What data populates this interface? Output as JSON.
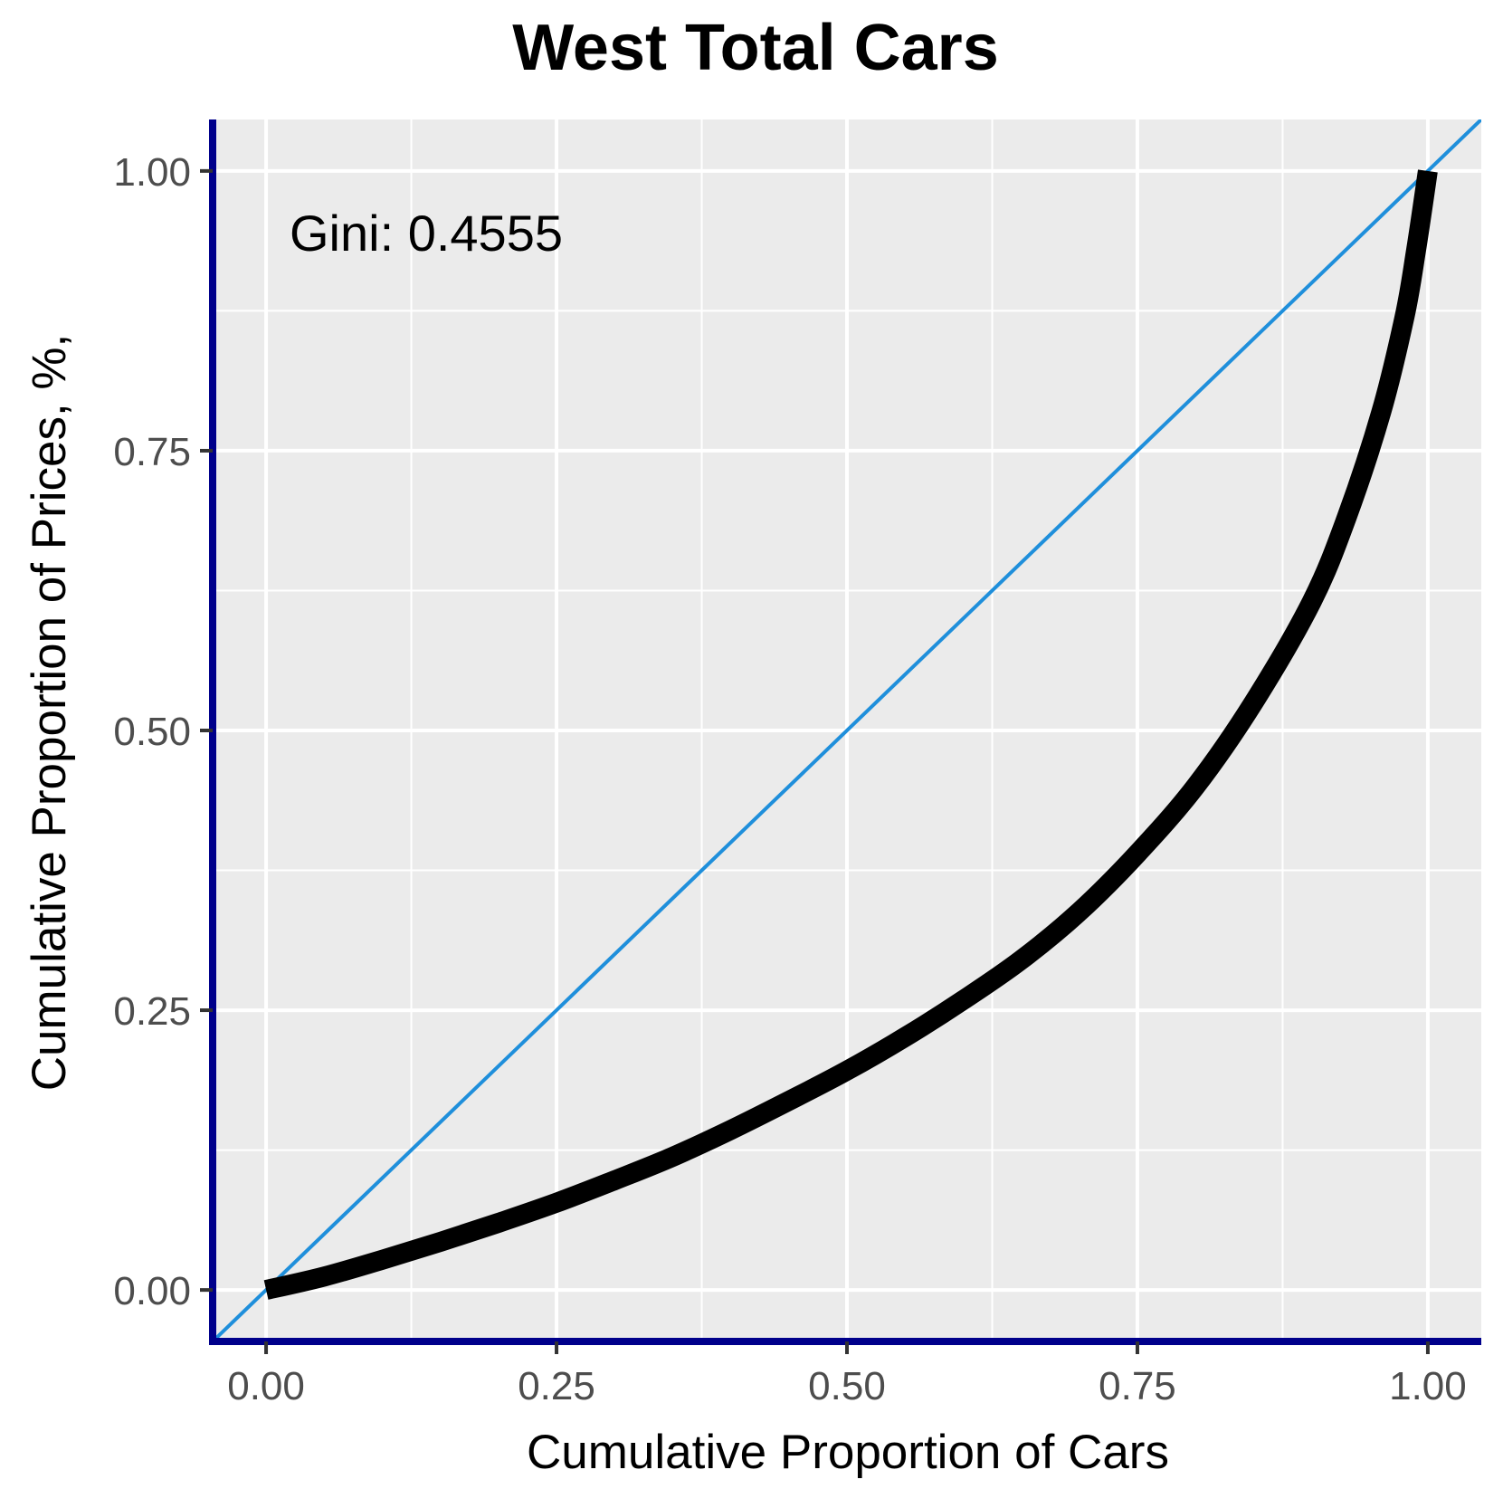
{
  "chart_data": {
    "type": "line",
    "title": "West Total Cars",
    "xlabel": "Cumulative Proportion of Cars",
    "ylabel": "Cumulative Proportion of Prices, %,",
    "annotation": "Gini: 0.4555",
    "xlim": [
      -0.046,
      1.046
    ],
    "ylim": [
      -0.046,
      1.046
    ],
    "x_ticks": [
      0.0,
      0.25,
      0.5,
      0.75,
      1.0
    ],
    "y_ticks": [
      0.0,
      0.25,
      0.5,
      0.75,
      1.0
    ],
    "x_tick_labels": [
      "0.00",
      "0.25",
      "0.50",
      "0.75",
      "1.00"
    ],
    "y_tick_labels": [
      "0.00",
      "0.25",
      "0.50",
      "0.75",
      "1.00"
    ],
    "grid": true,
    "series": [
      {
        "role": "lorenz-curve",
        "color": "#000000",
        "x": [
          0.0,
          0.05,
          0.1,
          0.15,
          0.2,
          0.25,
          0.3,
          0.35,
          0.4,
          0.45,
          0.5,
          0.55,
          0.6,
          0.65,
          0.7,
          0.75,
          0.8,
          0.85,
          0.9,
          0.93,
          0.96,
          0.98,
          0.99,
          1.0
        ],
        "y": [
          0.0,
          0.012,
          0.027,
          0.043,
          0.06,
          0.078,
          0.098,
          0.119,
          0.143,
          0.169,
          0.196,
          0.226,
          0.259,
          0.295,
          0.338,
          0.39,
          0.45,
          0.525,
          0.615,
          0.69,
          0.785,
          0.87,
          0.93,
          1.0
        ]
      },
      {
        "role": "line-of-equality",
        "color": "#1f8fdb",
        "x": [
          -0.046,
          1.046
        ],
        "y": [
          -0.046,
          1.046
        ]
      }
    ],
    "colors": {
      "panel_background": "#ebebeb",
      "grid": "#ffffff",
      "axis_line": "#00008b",
      "tick_label": "#4d4d4d",
      "text": "#000000"
    }
  }
}
